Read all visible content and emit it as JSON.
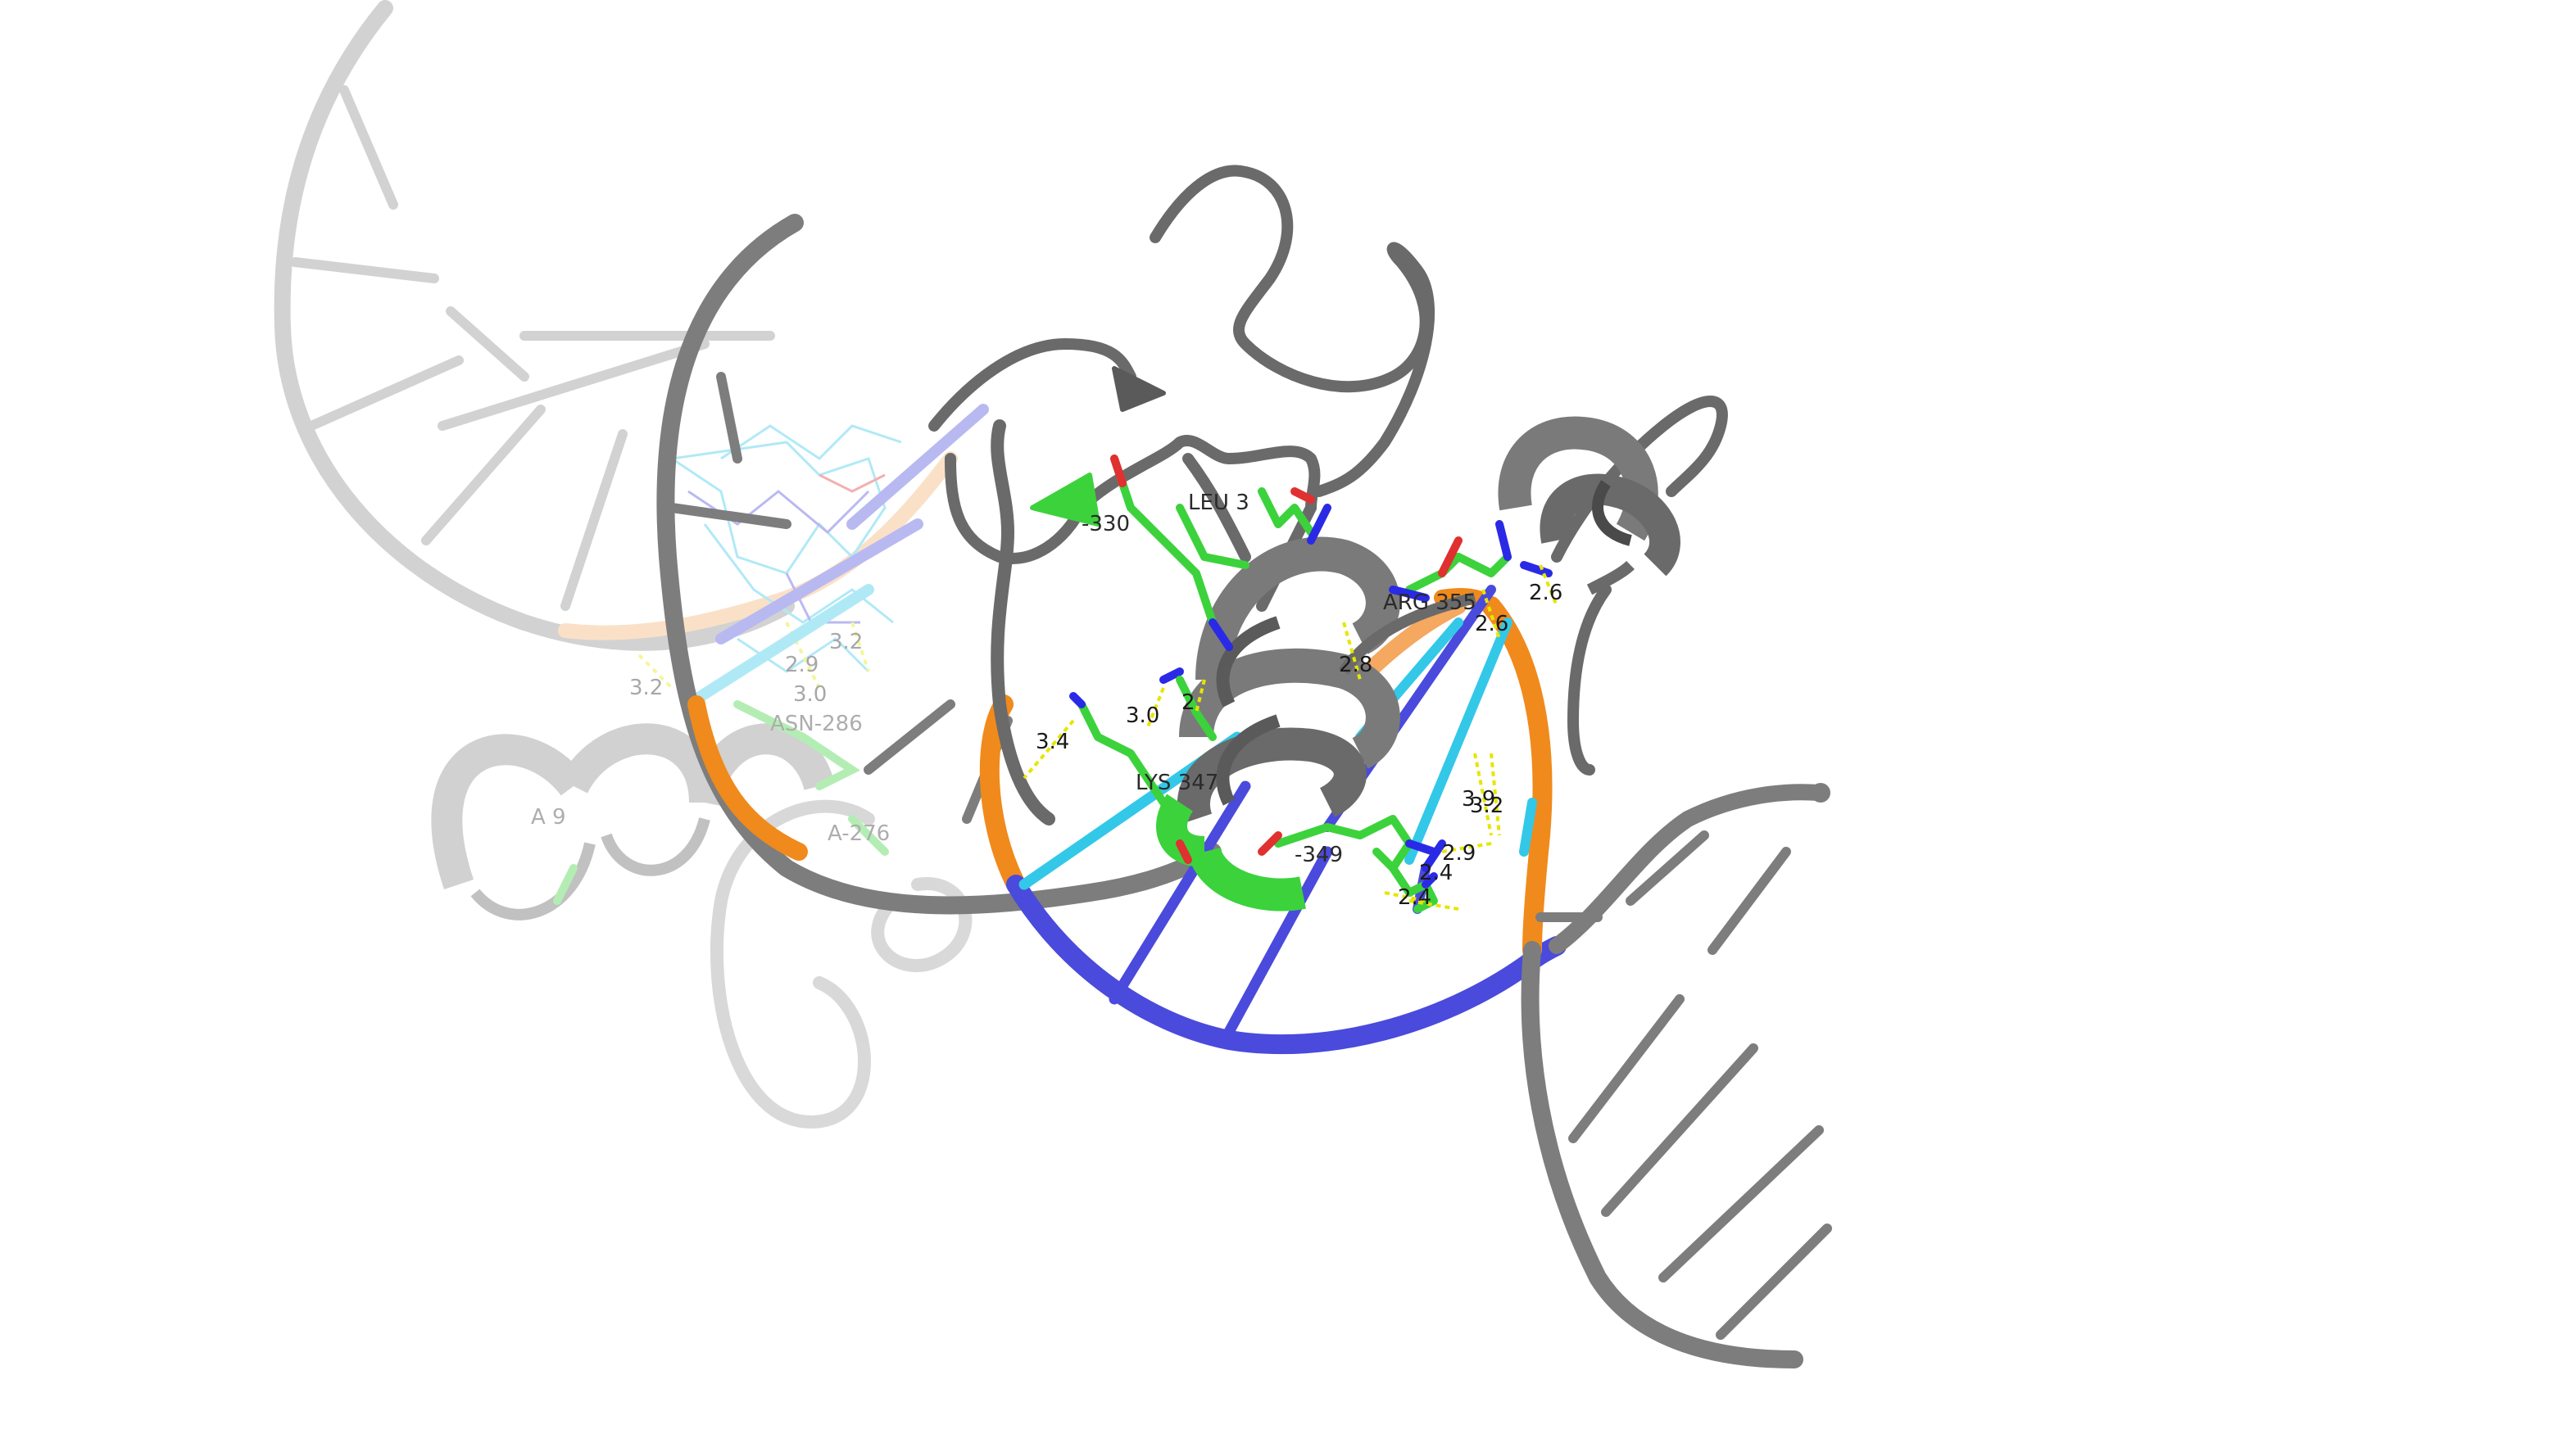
{
  "scene": {
    "background": "#ffffff",
    "colors": {
      "backbone": "#7a7a7a",
      "backbone_dark": "#5a5a5a",
      "dna_orange": "#f08a1c",
      "dna_blue": "#4a4adc",
      "dna_cyan": "#33c8e8",
      "residue_carbon": "#3cd23c",
      "nitrogen": "#2a2ae6",
      "oxygen": "#e03030",
      "hbond": "#e6e600"
    }
  },
  "residue_labels": {
    "leu": "LEU 3",
    "r330": "-330",
    "arg355": "ARG 355",
    "lys": "LYS 347",
    "r349": "-349",
    "asn286": "ASN-286",
    "a276": "A-276",
    "a9": "A  9"
  },
  "distances": {
    "d1": "3.4",
    "d2": "3.0",
    "d3": "2",
    "d4": "2.8",
    "d5": "2.6",
    "d6": "2.6",
    "d7": "3.9",
    "d8": "3.2",
    "d9": "2.9",
    "d10": "2.4",
    "d11": "2.4",
    "f1": "3.2",
    "f2": "3.2",
    "f3": "3.0",
    "f4": "2.9"
  }
}
